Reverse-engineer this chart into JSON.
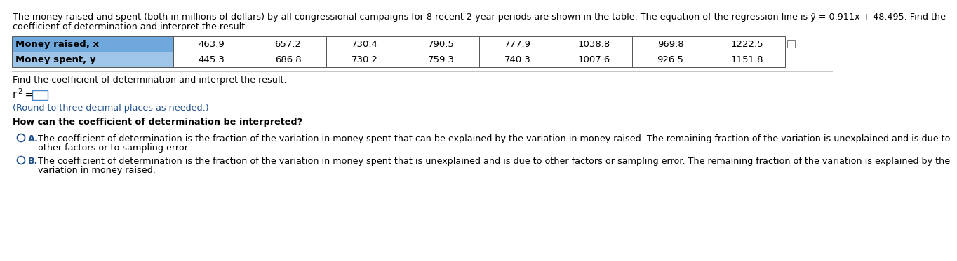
{
  "intro_line1": "The money raised and spent (both in millions of dollars) by all congressional campaigns for 8 recent 2-year periods are shown in the table. The equation of the regression line is ŷ = 0.911x + 48.495. Find the",
  "intro_line2": "coefficient of determination and interpret the result.",
  "table": {
    "row1_label": "Money raised, x",
    "row2_label": "Money spent, y",
    "row1_values": [
      "463.9",
      "657.2",
      "730.4",
      "790.5",
      "777.9",
      "1038.8",
      "969.8",
      "1222.5"
    ],
    "row2_values": [
      "445.3",
      "686.8",
      "730.2",
      "759.3",
      "740.3",
      "1007.6",
      "926.5",
      "1151.8"
    ],
    "row1_bg": "#6fa8dc",
    "row2_bg": "#9fc5e8"
  },
  "find_text": "Find the coefficient of determination and interpret the result.",
  "round_text": "(Round to three decimal places as needed.)",
  "how_text": "How can the coefficient of determination be interpreted?",
  "option_A_text": "The coefficient of determination is the fraction of the variation in money spent that can be explained by the variation in money raised. The remaining fraction of the variation is unexplained and is due to",
  "option_A_text2": "other factors or to sampling error.",
  "option_B_text": "The coefficient of determination is the fraction of the variation in money spent that is unexplained and is due to other factors or sampling error. The remaining fraction of the variation is explained by the",
  "option_B_text2": "variation in money raised.",
  "text_color": "#000000",
  "blue_color": "#1f4e8c",
  "option_color": "#1f4e8c",
  "bg_color": "#ffffff",
  "font_size_intro": 9.2,
  "font_size_table_label": 9.5,
  "font_size_table_val": 9.5,
  "font_size_body": 9.2,
  "font_size_r2": 10.5
}
